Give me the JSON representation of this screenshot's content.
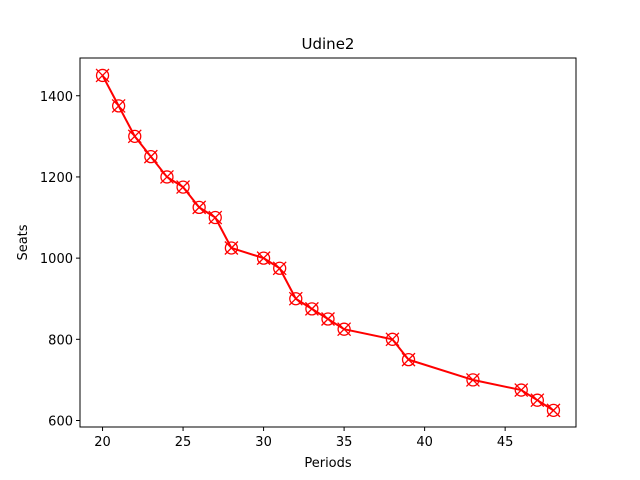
{
  "chart_data": {
    "type": "line",
    "title": "Udine2",
    "xlabel": "Periods",
    "ylabel": "Seats",
    "xlim": [
      18.6,
      49.4
    ],
    "ylim": [
      584,
      1493
    ],
    "x_ticks": [
      20,
      25,
      30,
      35,
      40,
      45
    ],
    "y_ticks": [
      600,
      800,
      1000,
      1200,
      1400
    ],
    "grid": false,
    "legend": "none",
    "series": [
      {
        "color": "#ff0000",
        "marker": "circle-x",
        "x": [
          20,
          21,
          22,
          23,
          24,
          25,
          26,
          27,
          28,
          30,
          31,
          32,
          33,
          34,
          35,
          38,
          39,
          43,
          46,
          47,
          48
        ],
        "y": [
          1450,
          1375,
          1300,
          1250,
          1200,
          1175,
          1125,
          1100,
          1025,
          1000,
          975,
          900,
          875,
          850,
          825,
          800,
          750,
          700,
          675,
          650,
          625
        ]
      }
    ]
  }
}
